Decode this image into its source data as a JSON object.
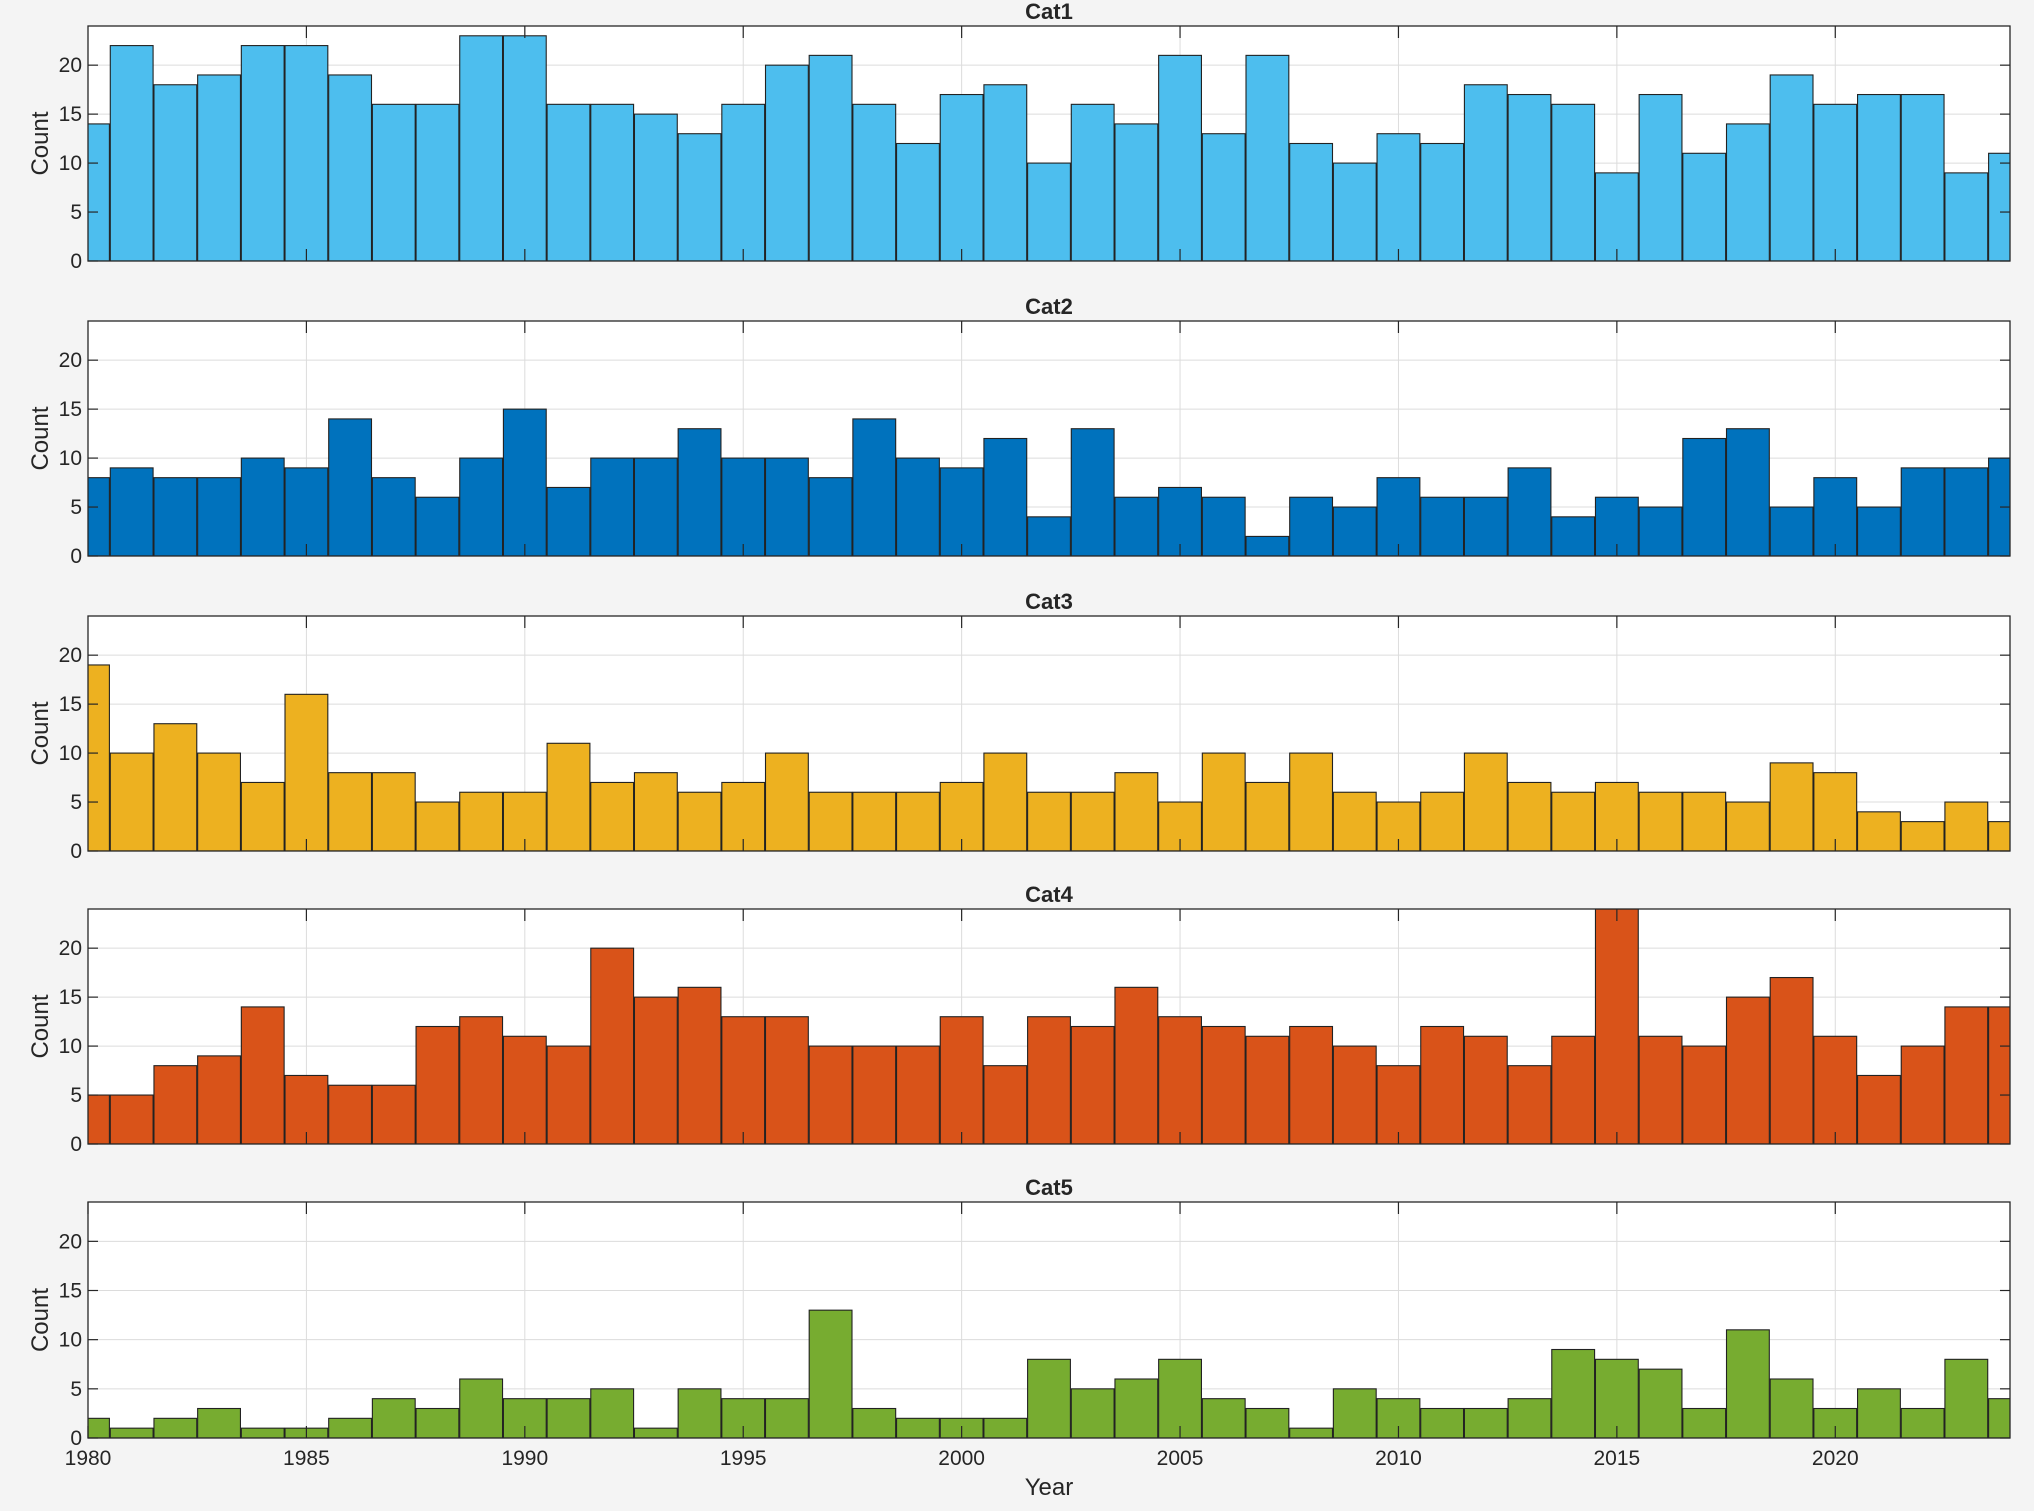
{
  "chart_data": [
    {
      "type": "bar",
      "title": "Cat1",
      "xlabel": "",
      "ylabel": "Count",
      "xlim": [
        1980,
        2024
      ],
      "ylim": [
        0,
        24
      ],
      "yticks": [
        0,
        5,
        10,
        15,
        20
      ],
      "xticks": [
        1985,
        1990,
        1995,
        2000,
        2005,
        2010,
        2015,
        2020
      ],
      "show_xtick_labels": false,
      "grid": true,
      "color": "#4DBEEE",
      "x": [
        1980,
        1981,
        1982,
        1983,
        1984,
        1985,
        1986,
        1987,
        1988,
        1989,
        1990,
        1991,
        1992,
        1993,
        1994,
        1995,
        1996,
        1997,
        1998,
        1999,
        2000,
        2001,
        2002,
        2003,
        2004,
        2005,
        2006,
        2007,
        2008,
        2009,
        2010,
        2011,
        2012,
        2013,
        2014,
        2015,
        2016,
        2017,
        2018,
        2019,
        2020,
        2021,
        2022,
        2023,
        2024
      ],
      "values": [
        14,
        22,
        18,
        19,
        22,
        22,
        19,
        16,
        16,
        23,
        23,
        16,
        16,
        15,
        13,
        16,
        20,
        21,
        16,
        12,
        17,
        18,
        10,
        16,
        14,
        21,
        13,
        21,
        12,
        10,
        13,
        12,
        18,
        17,
        16,
        9,
        17,
        11,
        14,
        19,
        16,
        17,
        17,
        9,
        11
      ]
    },
    {
      "type": "bar",
      "title": "Cat2",
      "xlabel": "",
      "ylabel": "Count",
      "xlim": [
        1980,
        2024
      ],
      "ylim": [
        0,
        24
      ],
      "yticks": [
        0,
        5,
        10,
        15,
        20
      ],
      "xticks": [
        1985,
        1990,
        1995,
        2000,
        2005,
        2010,
        2015,
        2020
      ],
      "show_xtick_labels": false,
      "grid": true,
      "color": "#0072BD",
      "x": [
        1980,
        1981,
        1982,
        1983,
        1984,
        1985,
        1986,
        1987,
        1988,
        1989,
        1990,
        1991,
        1992,
        1993,
        1994,
        1995,
        1996,
        1997,
        1998,
        1999,
        2000,
        2001,
        2002,
        2003,
        2004,
        2005,
        2006,
        2007,
        2008,
        2009,
        2010,
        2011,
        2012,
        2013,
        2014,
        2015,
        2016,
        2017,
        2018,
        2019,
        2020,
        2021,
        2022,
        2023,
        2024
      ],
      "values": [
        8,
        9,
        8,
        8,
        10,
        9,
        14,
        8,
        6,
        10,
        15,
        7,
        10,
        10,
        13,
        10,
        10,
        8,
        14,
        10,
        9,
        12,
        4,
        13,
        6,
        7,
        6,
        2,
        6,
        5,
        8,
        6,
        6,
        9,
        4,
        6,
        5,
        12,
        13,
        5,
        8,
        5,
        9,
        9,
        10
      ]
    },
    {
      "type": "bar",
      "title": "Cat3",
      "xlabel": "",
      "ylabel": "Count",
      "xlim": [
        1980,
        2024
      ],
      "ylim": [
        0,
        24
      ],
      "yticks": [
        0,
        5,
        10,
        15,
        20
      ],
      "xticks": [
        1985,
        1990,
        1995,
        2000,
        2005,
        2010,
        2015,
        2020
      ],
      "show_xtick_labels": false,
      "grid": true,
      "color": "#EDB120",
      "x": [
        1980,
        1981,
        1982,
        1983,
        1984,
        1985,
        1986,
        1987,
        1988,
        1989,
        1990,
        1991,
        1992,
        1993,
        1994,
        1995,
        1996,
        1997,
        1998,
        1999,
        2000,
        2001,
        2002,
        2003,
        2004,
        2005,
        2006,
        2007,
        2008,
        2009,
        2010,
        2011,
        2012,
        2013,
        2014,
        2015,
        2016,
        2017,
        2018,
        2019,
        2020,
        2021,
        2022,
        2023,
        2024
      ],
      "values": [
        19,
        10,
        13,
        10,
        7,
        16,
        8,
        8,
        5,
        6,
        6,
        11,
        7,
        8,
        6,
        7,
        10,
        6,
        6,
        6,
        7,
        10,
        6,
        6,
        8,
        5,
        10,
        7,
        10,
        6,
        5,
        6,
        10,
        7,
        6,
        7,
        6,
        6,
        5,
        9,
        8,
        4,
        3,
        5,
        3
      ]
    },
    {
      "type": "bar",
      "title": "Cat4",
      "xlabel": "",
      "ylabel": "Count",
      "xlim": [
        1980,
        2024
      ],
      "ylim": [
        0,
        24
      ],
      "yticks": [
        0,
        5,
        10,
        15,
        20
      ],
      "xticks": [
        1985,
        1990,
        1995,
        2000,
        2005,
        2010,
        2015,
        2020
      ],
      "show_xtick_labels": false,
      "grid": true,
      "color": "#D95319",
      "x": [
        1980,
        1981,
        1982,
        1983,
        1984,
        1985,
        1986,
        1987,
        1988,
        1989,
        1990,
        1991,
        1992,
        1993,
        1994,
        1995,
        1996,
        1997,
        1998,
        1999,
        2000,
        2001,
        2002,
        2003,
        2004,
        2005,
        2006,
        2007,
        2008,
        2009,
        2010,
        2011,
        2012,
        2013,
        2014,
        2015,
        2016,
        2017,
        2018,
        2019,
        2020,
        2021,
        2022,
        2023,
        2024
      ],
      "values": [
        5,
        5,
        8,
        9,
        14,
        7,
        6,
        6,
        12,
        13,
        11,
        10,
        20,
        15,
        16,
        13,
        13,
        10,
        10,
        10,
        13,
        8,
        13,
        12,
        16,
        13,
        12,
        11,
        12,
        10,
        8,
        12,
        11,
        8,
        11,
        24,
        11,
        10,
        15,
        17,
        11,
        7,
        10,
        14,
        14
      ]
    },
    {
      "type": "bar",
      "title": "Cat5",
      "xlabel": "Year",
      "ylabel": "Count",
      "xlim": [
        1980,
        2024
      ],
      "ylim": [
        0,
        24
      ],
      "yticks": [
        0,
        5,
        10,
        15,
        20
      ],
      "xticks": [
        1980,
        1985,
        1990,
        1995,
        2000,
        2005,
        2010,
        2015,
        2020
      ],
      "show_xtick_labels": true,
      "grid": true,
      "color": "#77AC30",
      "x": [
        1980,
        1981,
        1982,
        1983,
        1984,
        1985,
        1986,
        1987,
        1988,
        1989,
        1990,
        1991,
        1992,
        1993,
        1994,
        1995,
        1996,
        1997,
        1998,
        1999,
        2000,
        2001,
        2002,
        2003,
        2004,
        2005,
        2006,
        2007,
        2008,
        2009,
        2010,
        2011,
        2012,
        2013,
        2014,
        2015,
        2016,
        2017,
        2018,
        2019,
        2020,
        2021,
        2022,
        2023,
        2024
      ],
      "values": [
        2,
        1,
        2,
        3,
        1,
        1,
        2,
        4,
        3,
        6,
        4,
        4,
        5,
        1,
        5,
        4,
        4,
        13,
        3,
        2,
        2,
        2,
        8,
        5,
        6,
        8,
        4,
        3,
        1,
        5,
        4,
        3,
        3,
        4,
        9,
        8,
        7,
        3,
        11,
        6,
        3,
        5,
        3,
        8,
        4
      ]
    }
  ]
}
